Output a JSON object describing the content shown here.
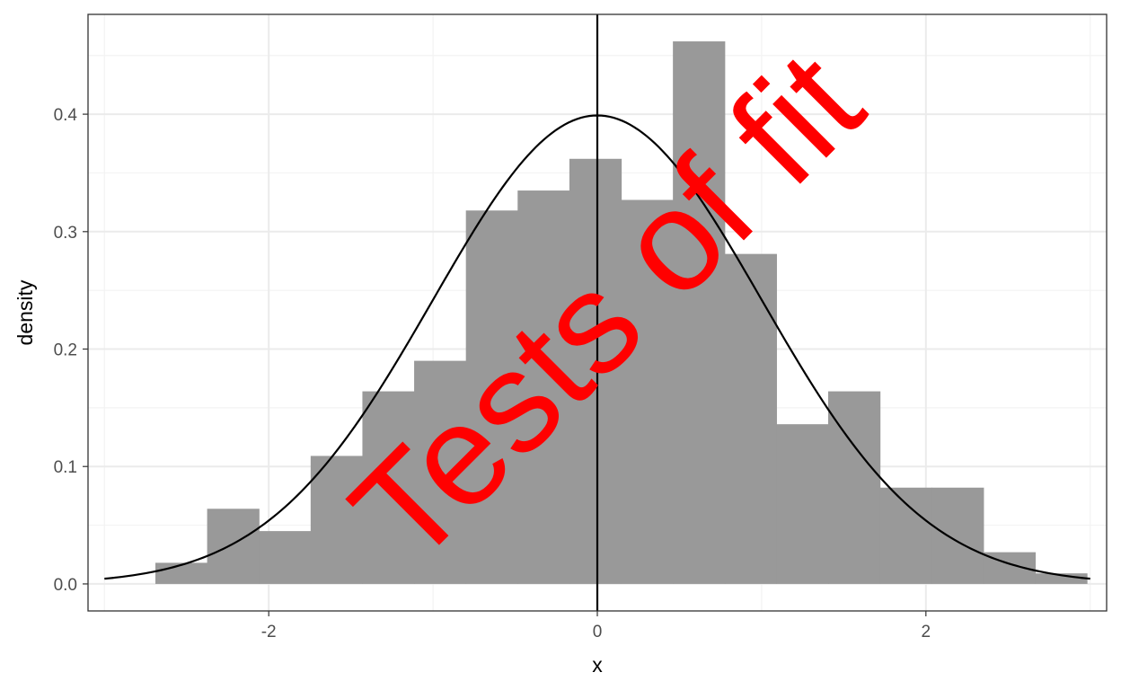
{
  "chart_data": {
    "type": "bar",
    "subtype": "histogram-with-density-curve",
    "title": "",
    "xlabel": "x",
    "ylabel": "density",
    "xlim": [
      -3.1,
      3.1
    ],
    "ylim": [
      -0.023,
      0.485
    ],
    "x_ticks": [
      -2,
      0,
      2
    ],
    "x_tick_labels": [
      "-2",
      "0",
      "2"
    ],
    "y_ticks": [
      0.0,
      0.1,
      0.2,
      0.3,
      0.4
    ],
    "y_tick_labels": [
      "0.0",
      "0.1",
      "0.2",
      "0.3",
      "0.4"
    ],
    "grid": true,
    "theme": "bw",
    "bins": {
      "edges": [
        -2.69,
        -2.375,
        -2.06,
        -1.745,
        -1.43,
        -1.115,
        -0.8,
        -0.485,
        -0.17,
        0.145,
        0.46,
        0.775,
        1.09,
        1.405,
        1.72,
        2.035,
        2.35,
        2.665,
        2.98
      ],
      "densities": [
        0.018,
        0.064,
        0.045,
        0.109,
        0.164,
        0.19,
        0.318,
        0.335,
        0.362,
        0.327,
        0.462,
        0.281,
        0.136,
        0.164,
        0.082,
        0.082,
        0.027,
        0.009
      ],
      "color": "#999999"
    },
    "density_curve": {
      "name": "normal density",
      "mean": 0,
      "sd": 1,
      "x_range": [
        -3,
        3
      ],
      "color": "#000000"
    },
    "vline": {
      "x": 0,
      "color": "#000000"
    },
    "annotation": {
      "text": "Tests of fit",
      "color": "#ff0000",
      "rotation_deg": -45
    }
  }
}
